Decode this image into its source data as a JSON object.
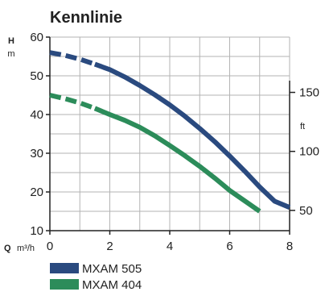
{
  "chart_data": {
    "type": "line",
    "title": "Kennlinie",
    "y_label_symbol": "H",
    "y_unit_left": "m",
    "y_unit_right": "ft",
    "x_label_symbol": "Q",
    "x_unit": "m³/h",
    "xlim": [
      0,
      8
    ],
    "ylim": [
      10,
      60
    ],
    "x_ticks": [
      "0",
      "2",
      "4",
      "6",
      "8"
    ],
    "y_ticks": [
      "10",
      "20",
      "30",
      "40",
      "50",
      "60"
    ],
    "y_ticks_values": [
      10,
      20,
      30,
      40,
      50,
      60
    ],
    "y_right_ticks": [
      "50",
      "100",
      "150"
    ],
    "y_right_ticks_values": [
      50,
      100,
      150
    ],
    "series": [
      {
        "name": "MXAM 505",
        "color": "#2a4a7f",
        "dashed_until_x": 1.5,
        "points": [
          [
            0,
            56
          ],
          [
            0.5,
            55.3
          ],
          [
            1,
            54.3
          ],
          [
            1.5,
            53
          ],
          [
            2,
            51.6
          ],
          [
            2.5,
            49.7
          ],
          [
            3,
            47.5
          ],
          [
            3.5,
            45.1
          ],
          [
            4,
            42.5
          ],
          [
            4.5,
            39.6
          ],
          [
            5,
            36.4
          ],
          [
            5.5,
            33
          ],
          [
            6,
            29.3
          ],
          [
            6.5,
            25.4
          ],
          [
            7,
            21.3
          ],
          [
            7.5,
            17.6
          ],
          [
            8,
            16
          ]
        ]
      },
      {
        "name": "MXAM 404",
        "color": "#2c8c5a",
        "dashed_until_x": 1.8,
        "points": [
          [
            0,
            45
          ],
          [
            0.5,
            44.1
          ],
          [
            1,
            43
          ],
          [
            1.5,
            41.6
          ],
          [
            2,
            40
          ],
          [
            2.5,
            38.5
          ],
          [
            3,
            36.7
          ],
          [
            3.5,
            34.5
          ],
          [
            4,
            32
          ],
          [
            4.5,
            29.4
          ],
          [
            5,
            26.6
          ],
          [
            5.5,
            23.6
          ],
          [
            6,
            20.4
          ],
          [
            6.5,
            17.7
          ],
          [
            7,
            15
          ]
        ]
      }
    ],
    "legend": [
      {
        "label": "MXAM 505",
        "color": "#2a4a7f"
      },
      {
        "label": "MXAM 404",
        "color": "#2c8c5a"
      }
    ],
    "grid": true,
    "legend_position": "bottom-left"
  }
}
